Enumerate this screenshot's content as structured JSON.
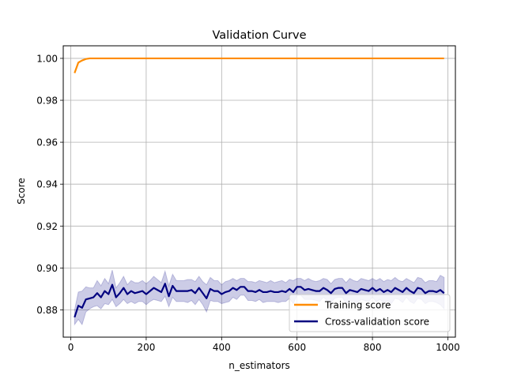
{
  "chart_data": {
    "type": "line",
    "title": "Validation Curve",
    "xlabel": "n_estimators",
    "ylabel": "Score",
    "xlim": [
      -20,
      1020
    ],
    "ylim": [
      0.867,
      1.006
    ],
    "x_ticks": [
      0,
      200,
      400,
      600,
      800,
      1000
    ],
    "y_ticks": [
      0.88,
      0.9,
      0.92,
      0.94,
      0.96,
      0.98,
      1.0
    ],
    "y_tick_labels": [
      "0.88",
      "0.90",
      "0.92",
      "0.94",
      "0.96",
      "0.98",
      "1.00"
    ],
    "grid": true,
    "legend_position": "lower-right",
    "x": [
      10,
      20,
      30,
      40,
      50,
      60,
      70,
      80,
      90,
      100,
      110,
      120,
      130,
      140,
      150,
      160,
      170,
      180,
      190,
      200,
      210,
      220,
      230,
      240,
      250,
      260,
      270,
      280,
      290,
      300,
      310,
      320,
      330,
      340,
      350,
      360,
      370,
      380,
      390,
      400,
      410,
      420,
      430,
      440,
      450,
      460,
      470,
      480,
      490,
      500,
      510,
      520,
      530,
      540,
      550,
      560,
      570,
      580,
      590,
      600,
      610,
      620,
      630,
      640,
      650,
      660,
      670,
      680,
      690,
      700,
      710,
      720,
      730,
      740,
      750,
      760,
      770,
      780,
      790,
      800,
      810,
      820,
      830,
      840,
      850,
      860,
      870,
      880,
      890,
      900,
      910,
      920,
      930,
      940,
      950,
      960,
      970,
      980,
      990
    ],
    "series": [
      {
        "name": "Training score",
        "color": "#ff8c00",
        "values": [
          0.993,
          0.998,
          0.999,
          0.9997,
          1.0,
          1.0,
          1.0,
          1.0,
          1.0,
          1.0,
          1.0,
          1.0,
          1.0,
          1.0,
          1.0,
          1.0,
          1.0,
          1.0,
          1.0,
          1.0,
          1.0,
          1.0,
          1.0,
          1.0,
          1.0,
          1.0,
          1.0,
          1.0,
          1.0,
          1.0,
          1.0,
          1.0,
          1.0,
          1.0,
          1.0,
          1.0,
          1.0,
          1.0,
          1.0,
          1.0,
          1.0,
          1.0,
          1.0,
          1.0,
          1.0,
          1.0,
          1.0,
          1.0,
          1.0,
          1.0,
          1.0,
          1.0,
          1.0,
          1.0,
          1.0,
          1.0,
          1.0,
          1.0,
          1.0,
          1.0,
          1.0,
          1.0,
          1.0,
          1.0,
          1.0,
          1.0,
          1.0,
          1.0,
          1.0,
          1.0,
          1.0,
          1.0,
          1.0,
          1.0,
          1.0,
          1.0,
          1.0,
          1.0,
          1.0,
          1.0,
          1.0,
          1.0,
          1.0,
          1.0,
          1.0,
          1.0,
          1.0,
          1.0,
          1.0,
          1.0,
          1.0,
          1.0,
          1.0,
          1.0,
          1.0,
          1.0,
          1.0,
          1.0,
          1.0
        ]
      },
      {
        "name": "Cross-validation score",
        "color": "#000080",
        "band_color": "#000080",
        "values": [
          0.8765,
          0.882,
          0.881,
          0.885,
          0.8855,
          0.886,
          0.888,
          0.886,
          0.889,
          0.8875,
          0.892,
          0.886,
          0.888,
          0.8905,
          0.8875,
          0.889,
          0.888,
          0.8885,
          0.889,
          0.8875,
          0.889,
          0.8905,
          0.8895,
          0.8885,
          0.8925,
          0.8865,
          0.8915,
          0.889,
          0.889,
          0.889,
          0.889,
          0.8895,
          0.888,
          0.8905,
          0.888,
          0.8855,
          0.89,
          0.889,
          0.889,
          0.8875,
          0.8885,
          0.889,
          0.8905,
          0.8895,
          0.891,
          0.891,
          0.889,
          0.889,
          0.8885,
          0.8895,
          0.8885,
          0.8885,
          0.889,
          0.8885,
          0.8885,
          0.889,
          0.8885,
          0.89,
          0.8885,
          0.891,
          0.891,
          0.8895,
          0.89,
          0.8895,
          0.889,
          0.889,
          0.8905,
          0.8895,
          0.888,
          0.89,
          0.8905,
          0.8905,
          0.888,
          0.8895,
          0.889,
          0.8885,
          0.89,
          0.8895,
          0.889,
          0.8905,
          0.889,
          0.89,
          0.8885,
          0.8895,
          0.8885,
          0.8905,
          0.8895,
          0.8885,
          0.8905,
          0.889,
          0.888,
          0.8905,
          0.89,
          0.888,
          0.889,
          0.889,
          0.8885,
          0.8895,
          0.888
        ],
        "std": [
          0.0035,
          0.0065,
          0.008,
          0.006,
          0.005,
          0.0045,
          0.006,
          0.0055,
          0.006,
          0.005,
          0.007,
          0.0045,
          0.005,
          0.0055,
          0.0045,
          0.005,
          0.005,
          0.0045,
          0.005,
          0.005,
          0.005,
          0.0055,
          0.005,
          0.0045,
          0.006,
          0.005,
          0.0055,
          0.005,
          0.005,
          0.005,
          0.0055,
          0.005,
          0.0055,
          0.0055,
          0.0055,
          0.0065,
          0.0055,
          0.005,
          0.005,
          0.0045,
          0.005,
          0.005,
          0.0045,
          0.0045,
          0.004,
          0.004,
          0.0045,
          0.0045,
          0.0045,
          0.0045,
          0.005,
          0.0045,
          0.005,
          0.0045,
          0.005,
          0.005,
          0.0045,
          0.0045,
          0.0055,
          0.004,
          0.004,
          0.0045,
          0.005,
          0.0045,
          0.0045,
          0.005,
          0.0045,
          0.005,
          0.0045,
          0.0045,
          0.0045,
          0.0045,
          0.005,
          0.0055,
          0.005,
          0.005,
          0.005,
          0.005,
          0.005,
          0.0045,
          0.005,
          0.005,
          0.005,
          0.005,
          0.0055,
          0.005,
          0.0045,
          0.005,
          0.0045,
          0.005,
          0.005,
          0.005,
          0.005,
          0.005,
          0.005,
          0.005,
          0.005,
          0.007,
          0.0075
        ]
      }
    ]
  }
}
